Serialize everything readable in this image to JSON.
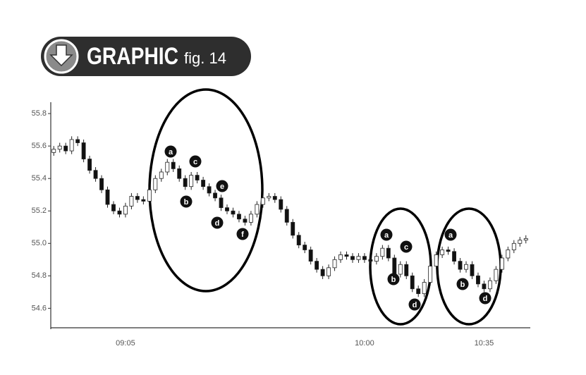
{
  "chart_data": {
    "type": "candlestick",
    "title": "GRAPHIC",
    "subtitle": "fig. 14",
    "categories": [
      null,
      null,
      null,
      null,
      null,
      null,
      null,
      null,
      null,
      null,
      null,
      null,
      "09:05",
      null,
      null,
      null,
      null,
      null,
      null,
      null,
      null,
      null,
      null,
      null,
      null,
      null,
      null,
      null,
      null,
      null,
      null,
      null,
      null,
      null,
      null,
      null,
      null,
      null,
      null,
      null,
      null,
      null,
      null,
      null,
      null,
      null,
      null,
      null,
      null,
      null,
      null,
      null,
      "10:00",
      null,
      null,
      null,
      null,
      null,
      null,
      null,
      null,
      null,
      null,
      null,
      null,
      null,
      null,
      null,
      null,
      null,
      null,
      null,
      "10:35",
      null,
      null,
      null,
      null,
      null,
      null,
      null
    ],
    "open": [
      55.56,
      55.58,
      55.6,
      55.57,
      55.64,
      55.62,
      55.52,
      55.45,
      55.4,
      55.33,
      55.24,
      55.2,
      55.18,
      55.23,
      55.29,
      55.27,
      55.26,
      55.33,
      55.4,
      55.44,
      55.5,
      55.46,
      55.4,
      55.35,
      55.42,
      55.39,
      55.35,
      55.31,
      55.28,
      55.22,
      55.2,
      55.18,
      55.15,
      55.13,
      55.18,
      55.24,
      55.28,
      55.29,
      55.27,
      55.21,
      55.13,
      55.05,
      54.99,
      54.96,
      54.89,
      54.84,
      54.8,
      54.85,
      54.9,
      54.93,
      54.92,
      54.9,
      54.92,
      54.9,
      54.89,
      54.92,
      54.97,
      54.91,
      54.81,
      54.87,
      54.8,
      54.72,
      54.69,
      54.76,
      54.86,
      54.93,
      54.96,
      54.95,
      54.89,
      54.84,
      54.87,
      54.8,
      54.75,
      54.72,
      54.77,
      54.84,
      54.91,
      54.96,
      55.0,
      55.02
    ],
    "close": [
      55.58,
      55.6,
      55.57,
      55.64,
      55.62,
      55.52,
      55.45,
      55.4,
      55.33,
      55.24,
      55.2,
      55.18,
      55.23,
      55.29,
      55.27,
      55.26,
      55.33,
      55.4,
      55.44,
      55.5,
      55.46,
      55.4,
      55.35,
      55.42,
      55.39,
      55.35,
      55.31,
      55.28,
      55.22,
      55.2,
      55.18,
      55.15,
      55.13,
      55.18,
      55.24,
      55.28,
      55.29,
      55.27,
      55.21,
      55.13,
      55.05,
      54.99,
      54.96,
      54.89,
      54.84,
      54.8,
      54.85,
      54.9,
      54.93,
      54.92,
      54.9,
      54.92,
      54.9,
      54.89,
      54.92,
      54.97,
      54.91,
      54.81,
      54.87,
      54.8,
      54.72,
      54.69,
      54.76,
      54.86,
      54.93,
      54.96,
      54.95,
      54.89,
      54.84,
      54.87,
      54.8,
      54.75,
      54.72,
      54.77,
      54.84,
      54.91,
      54.96,
      55.0,
      55.02,
      55.03
    ],
    "high": [
      55.6,
      55.62,
      55.62,
      55.66,
      55.66,
      55.64,
      55.54,
      55.47,
      55.42,
      55.35,
      55.26,
      55.22,
      55.25,
      55.31,
      55.31,
      55.29,
      55.35,
      55.42,
      55.46,
      55.52,
      55.52,
      55.48,
      55.42,
      55.44,
      55.44,
      55.41,
      55.37,
      55.33,
      55.3,
      55.24,
      55.22,
      55.2,
      55.17,
      55.2,
      55.26,
      55.3,
      55.31,
      55.31,
      55.29,
      55.23,
      55.15,
      55.07,
      55.01,
      54.98,
      54.91,
      54.86,
      54.87,
      54.92,
      54.95,
      54.95,
      54.94,
      54.94,
      54.94,
      54.92,
      54.94,
      54.99,
      54.99,
      54.93,
      54.89,
      54.89,
      54.82,
      54.74,
      54.78,
      54.88,
      54.95,
      54.98,
      54.98,
      54.97,
      54.91,
      54.89,
      54.89,
      54.82,
      54.77,
      54.79,
      54.86,
      54.93,
      54.98,
      55.02,
      55.04,
      55.05
    ],
    "low": [
      55.54,
      55.56,
      55.55,
      55.55,
      55.6,
      55.5,
      55.43,
      55.38,
      55.31,
      55.22,
      55.18,
      55.16,
      55.16,
      55.21,
      55.25,
      55.24,
      55.24,
      55.31,
      55.38,
      55.42,
      55.44,
      55.38,
      55.33,
      55.33,
      55.37,
      55.33,
      55.29,
      55.26,
      55.2,
      55.18,
      55.16,
      55.13,
      55.11,
      55.11,
      55.16,
      55.22,
      55.26,
      55.25,
      55.19,
      55.11,
      55.03,
      54.97,
      54.94,
      54.87,
      54.82,
      54.78,
      54.78,
      54.83,
      54.88,
      54.9,
      54.88,
      54.88,
      54.88,
      54.87,
      54.87,
      54.9,
      54.89,
      54.79,
      54.79,
      54.78,
      54.7,
      54.67,
      54.67,
      54.74,
      54.84,
      54.91,
      54.93,
      54.87,
      54.82,
      54.82,
      54.78,
      54.73,
      54.7,
      54.7,
      54.75,
      54.82,
      54.89,
      54.94,
      54.98,
      55.0
    ],
    "up_color": "#ffffff",
    "down_color": "#111111",
    "ylim": [
      54.48,
      55.87
    ],
    "yticks": [
      54.6,
      54.8,
      {
        "value": 55.0,
        "label": "55.0"
      },
      55.2,
      55.4,
      55.6,
      55.8
    ],
    "annotations": [
      "a",
      "b",
      "c",
      "e",
      "d",
      "f",
      "a",
      "b",
      "c",
      "d",
      "a",
      "b",
      "d"
    ]
  }
}
